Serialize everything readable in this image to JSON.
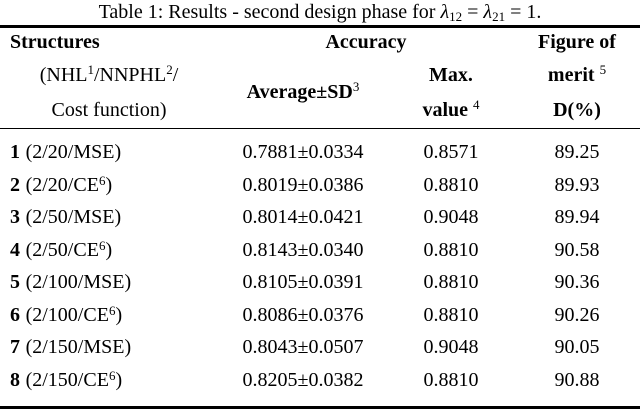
{
  "table": {
    "caption": {
      "prefix": "Table 1: Results - second design phase for ",
      "lambda": "λ",
      "sub_a": "12",
      "equals": " = ",
      "sub_b": "21",
      "suffix": " = 1."
    },
    "header": {
      "col1": {
        "line1": "Structures",
        "line2": {
          "p1": "(NHL",
          "sup1": "1",
          "p2": "/NNPHL",
          "sup2": "2",
          "p3": "/"
        },
        "line3": "Cost function)"
      },
      "accuracy": "Accuracy",
      "average": {
        "base": "Average±SD",
        "sup": "3"
      },
      "max": {
        "line1": "Max.",
        "value": "value",
        "value_sup": "4"
      },
      "figure": {
        "line1": "Figure of",
        "merit": "merit",
        "merit_sup": "5",
        "d_label": "D(%)"
      }
    },
    "rows": [
      {
        "num": "1",
        "label_base": "(2/20/MSE)",
        "label_sup": "",
        "label_close": "",
        "avg": "0.7881±0.0334",
        "max": "0.8571",
        "d": "89.25"
      },
      {
        "num": "2",
        "label_base": "(2/20/CE",
        "label_sup": "6",
        "label_close": ")",
        "avg": "0.8019±0.0386",
        "max": "0.8810",
        "d": "89.93"
      },
      {
        "num": "3",
        "label_base": "(2/50/MSE)",
        "label_sup": "",
        "label_close": "",
        "avg": "0.8014±0.0421",
        "max": "0.9048",
        "d": "89.94"
      },
      {
        "num": "4",
        "label_base": "(2/50/CE",
        "label_sup": "6",
        "label_close": ")",
        "avg": "0.8143±0.0340",
        "max": "0.8810",
        "d": "90.58"
      },
      {
        "num": "5",
        "label_base": "(2/100/MSE)",
        "label_sup": "",
        "label_close": "",
        "avg": "0.8105±0.0391",
        "max": "0.8810",
        "d": "90.36"
      },
      {
        "num": "6",
        "label_base": "(2/100/CE",
        "label_sup": "6",
        "label_close": ")",
        "avg": "0.8086±0.0376",
        "max": "0.8810",
        "d": "90.26"
      },
      {
        "num": "7",
        "label_base": "(2/150/MSE)",
        "label_sup": "",
        "label_close": "",
        "avg": "0.8043±0.0507",
        "max": "0.9048",
        "d": "90.05"
      },
      {
        "num": "8",
        "label_base": "(2/150/CE",
        "label_sup": "6",
        "label_close": ")",
        "avg": "0.8205±0.0382",
        "max": "0.8810",
        "d": "90.88"
      }
    ],
    "colors": {
      "text": "#000000",
      "background": "#ffffff",
      "rule": "#000000"
    }
  },
  "chart_data": {
    "type": "table",
    "title": "Table 1: Results - second design phase for λ12 = λ21 = 1.",
    "columns": [
      "Structures (NHL/NNPHL/Cost function)",
      "Accuracy Average±SD",
      "Accuracy Max. value",
      "Figure of merit D(%)"
    ],
    "rows": [
      [
        "1 (2/20/MSE)",
        "0.7881±0.0334",
        0.8571,
        89.25
      ],
      [
        "2 (2/20/CE6)",
        "0.8019±0.0386",
        0.881,
        89.93
      ],
      [
        "3 (2/50/MSE)",
        "0.8014±0.0421",
        0.9048,
        89.94
      ],
      [
        "4 (2/50/CE6)",
        "0.8143±0.0340",
        0.881,
        90.58
      ],
      [
        "5 (2/100/MSE)",
        "0.8105±0.0391",
        0.881,
        90.36
      ],
      [
        "6 (2/100/CE6)",
        "0.8086±0.0376",
        0.881,
        90.26
      ],
      [
        "7 (2/150/MSE)",
        "0.8043±0.0507",
        0.9048,
        90.05
      ],
      [
        "8 (2/150/CE6)",
        "0.8205±0.0382",
        0.881,
        90.88
      ]
    ]
  }
}
